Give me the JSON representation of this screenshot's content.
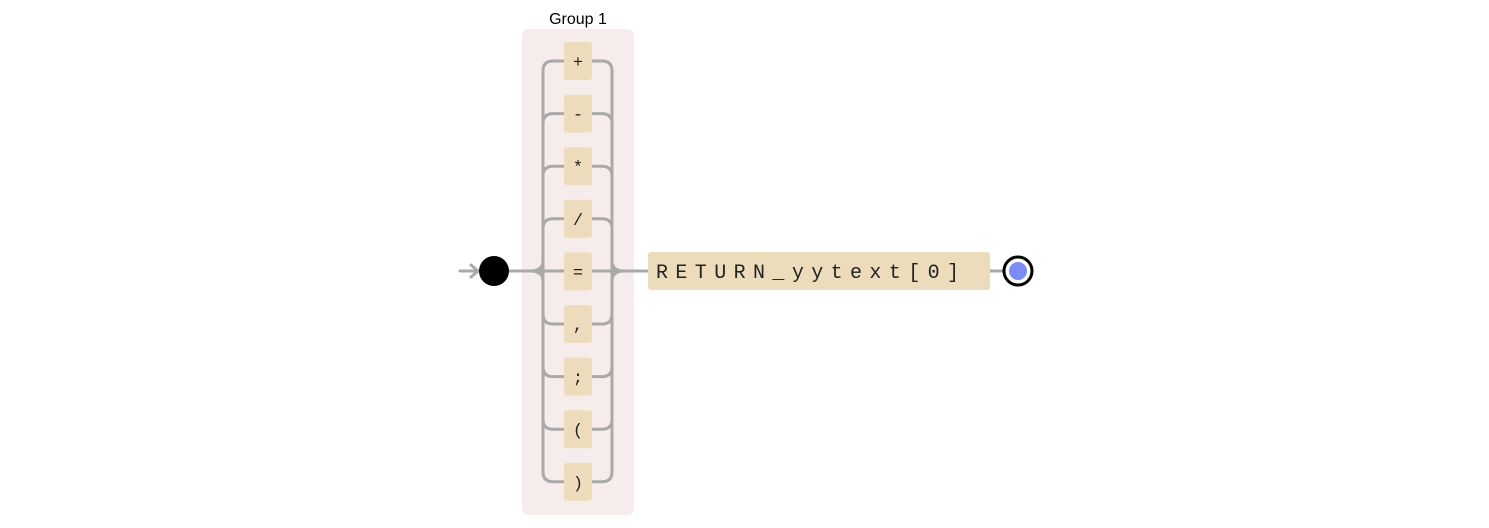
{
  "group": {
    "label": "Group 1",
    "alternatives": [
      "+",
      "-",
      "*",
      "/",
      "=",
      ",",
      ";",
      "(",
      ")"
    ]
  },
  "sequence": {
    "token": "RETURN_yytext[0]"
  },
  "colors": {
    "group_background": "#f7ecec",
    "literal_background": "#eddcbc",
    "track": "#a9a9a9",
    "start": "#000000",
    "end_fill": "#7b8cf7"
  },
  "icons": {
    "entry": "arrow-right-icon",
    "start": "start-node-icon",
    "end": "end-node-icon"
  }
}
